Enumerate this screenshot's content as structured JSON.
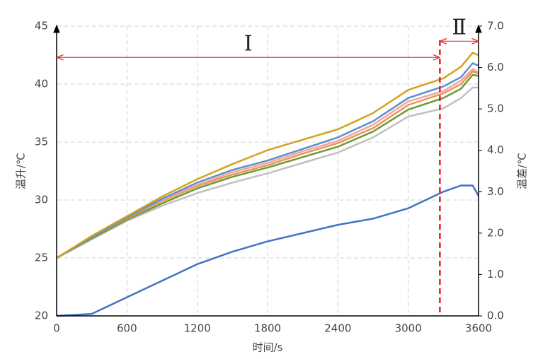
{
  "chart_data": {
    "type": "line",
    "x_label": "时间/s",
    "y_label": "温升/℃",
    "y2_label": "温差/℃",
    "x": [
      0,
      300,
      600,
      900,
      1200,
      1500,
      1800,
      2100,
      2400,
      2700,
      3000,
      3300,
      3450,
      3550,
      3600
    ],
    "series": [
      {
        "color": "#d4a21c",
        "values": [
          25,
          26.9,
          28.6,
          30.3,
          31.8,
          33.1,
          34.3,
          35.2,
          36.1,
          37.5,
          39.5,
          40.5,
          41.5,
          42.7,
          42.5
        ]
      },
      {
        "color": "#5b8fc9",
        "values": [
          25,
          26.8,
          28.5,
          30.1,
          31.5,
          32.6,
          33.4,
          34.4,
          35.4,
          36.8,
          38.8,
          39.8,
          40.6,
          41.8,
          41.6
        ]
      },
      {
        "color": "#f2a6a0",
        "values": [
          25,
          26.8,
          28.5,
          30.0,
          31.3,
          32.4,
          33.2,
          34.2,
          35.1,
          36.5,
          38.5,
          39.4,
          40.3,
          41.3,
          41.0
        ]
      },
      {
        "color": "#e8955a",
        "values": [
          25,
          26.8,
          28.4,
          29.9,
          31.2,
          32.2,
          33.0,
          34.0,
          34.9,
          36.2,
          38.2,
          39.2,
          40.0,
          41.1,
          40.9
        ]
      },
      {
        "color": "#6b9a32",
        "values": [
          25,
          26.7,
          28.3,
          29.7,
          31.0,
          32.0,
          32.8,
          33.7,
          34.6,
          35.9,
          37.8,
          38.8,
          39.6,
          40.8,
          40.7
        ]
      },
      {
        "color": "#c0c0c0",
        "values": [
          25,
          26.6,
          28.2,
          29.5,
          30.6,
          31.5,
          32.3,
          33.2,
          34.1,
          35.4,
          37.2,
          37.9,
          38.8,
          39.7,
          39.7
        ]
      },
      {
        "color": "#4472c4",
        "axis": "y2",
        "values": [
          0,
          0.05,
          0.45,
          0.85,
          1.25,
          1.55,
          1.8,
          2.0,
          2.2,
          2.35,
          2.6,
          3.0,
          3.15,
          3.15,
          2.9
        ]
      }
    ],
    "xlim": [
      0,
      3600
    ],
    "xticks": [
      0,
      600,
      1200,
      1800,
      2400,
      3000,
      3600
    ],
    "ylim": [
      20,
      45
    ],
    "yticks": [
      20,
      25,
      30,
      35,
      40,
      45
    ],
    "y2lim": [
      0,
      7
    ],
    "y2ticks": [
      {
        "value": 0,
        "label": "0.0"
      },
      {
        "value": 1,
        "label": "1.0"
      },
      {
        "value": 2,
        "label": "2.0"
      },
      {
        "value": 3,
        "label": "3.0"
      },
      {
        "value": 4,
        "label": "4.0"
      },
      {
        "value": 5,
        "label": "5.0"
      },
      {
        "value": 6,
        "label": "6.0"
      },
      {
        "value": 7,
        "label": "7.0"
      }
    ],
    "grid": true,
    "divider_x": 3270,
    "annotations": [
      {
        "text": "Ⅰ",
        "x_from": 0,
        "x_to": 3270,
        "y": 42.3
      },
      {
        "text": "Ⅱ",
        "x_from": 3270,
        "x_to": 3600,
        "y": 43.7
      }
    ]
  }
}
